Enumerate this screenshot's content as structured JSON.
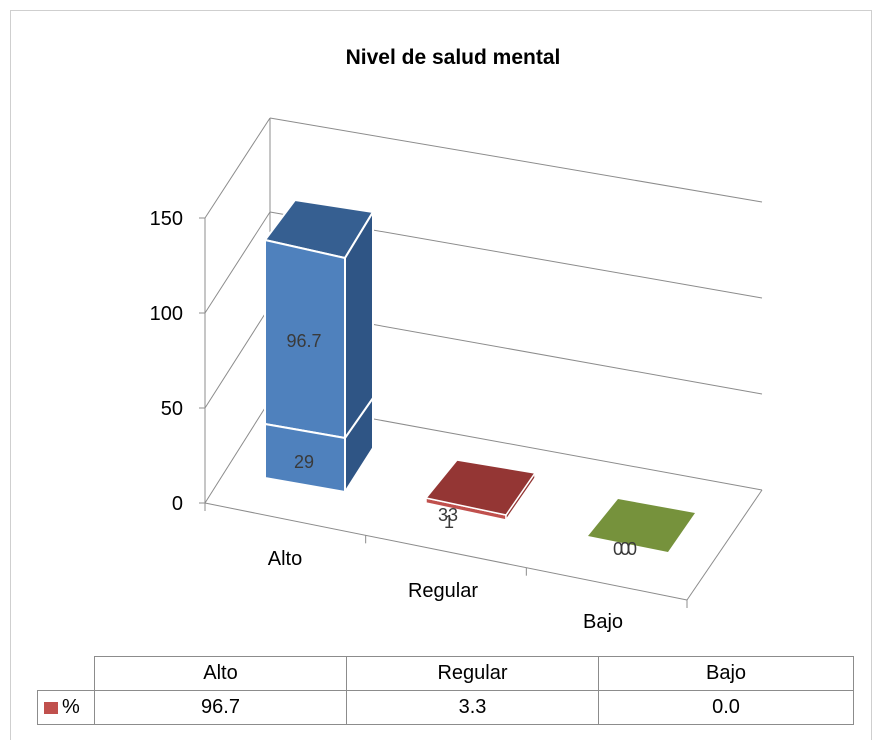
{
  "colors": {
    "alto_front": "#4f81bd",
    "alto_top": "#365f91",
    "alto_side": "#2f5585",
    "regular_top": "#943634",
    "regular_front": "#c0504d",
    "bajo_top": "#76923c",
    "legend_key": "#c0504d"
  },
  "chart_data": {
    "type": "bar",
    "title": "Nivel de salud mental",
    "categories": [
      "Alto",
      "Regular",
      "Bajo"
    ],
    "series": [
      {
        "name": "",
        "values": [
          29,
          1,
          0
        ]
      },
      {
        "name": "%",
        "values": [
          96.7,
          3.3,
          0.0
        ]
      }
    ],
    "data_labels": {
      "alto": [
        "29",
        "96.7"
      ],
      "regular": [
        "3",
        "1",
        "3"
      ],
      "bajo": [
        "0",
        "0",
        "0"
      ]
    },
    "ylim": [
      0,
      150
    ],
    "yticks": [
      "0",
      "50",
      "100",
      "150"
    ],
    "grid": true,
    "stacked": true,
    "three_d": true
  },
  "table": {
    "headers": [
      "Alto",
      "Regular",
      "Bajo"
    ],
    "row_label": "%",
    "row_values": [
      "96.7",
      "3.3",
      "0.0"
    ]
  }
}
